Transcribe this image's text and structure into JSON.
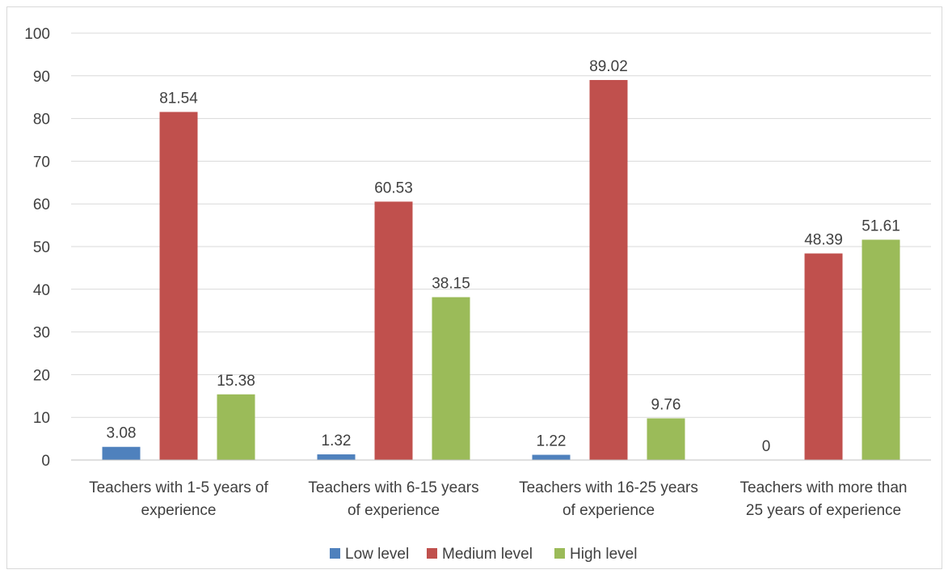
{
  "chart_data": {
    "type": "bar",
    "title": "",
    "xlabel": "",
    "ylabel": "",
    "ylim": [
      0,
      100
    ],
    "yticks": [
      0,
      10,
      20,
      30,
      40,
      50,
      60,
      70,
      80,
      90,
      100
    ],
    "grid": "horizontal",
    "legend_position": "bottom",
    "categories": [
      [
        "Teachers with 1-5 years of",
        "experience"
      ],
      [
        "Teachers with 6-15 years",
        "of experience"
      ],
      [
        "Teachers with 16-25 years",
        "of experience"
      ],
      [
        "Teachers with more than",
        "25 years of experience"
      ]
    ],
    "series": [
      {
        "name": "Low level",
        "color": "#4f81bd",
        "values": [
          3.08,
          1.32,
          1.22,
          0
        ],
        "labels": [
          "3.08",
          "1.32",
          "1.22",
          "0"
        ]
      },
      {
        "name": "Medium level",
        "color": "#c0504d",
        "values": [
          81.54,
          60.53,
          89.02,
          48.39
        ],
        "labels": [
          "81.54",
          "60.53",
          "89.02",
          "48.39"
        ]
      },
      {
        "name": "High level",
        "color": "#9bbb59",
        "values": [
          15.38,
          38.15,
          9.76,
          51.61
        ],
        "labels": [
          "15.38",
          "38.15",
          "9.76",
          "51.61"
        ]
      }
    ]
  }
}
